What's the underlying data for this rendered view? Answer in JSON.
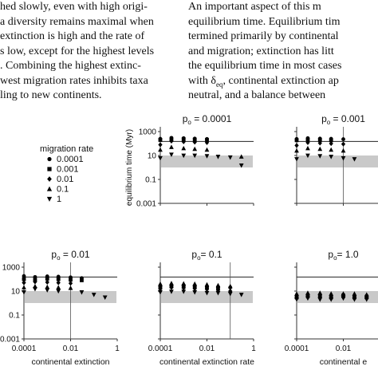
{
  "text": {
    "left_lines": [
      "hed slowly, even with high origi-",
      "a diversity remains maximal when",
      "extinction is high and the rate of",
      "s low, except for the highest levels",
      ". Combining the highest extinc-",
      "west migration rates inhibits taxa",
      "ling to new continents."
    ],
    "right_lines": [
      "  An important aspect of this m",
      "equilibrium time. Equilibrium tim",
      "termined primarily by continental",
      "and migration; extinction has litt",
      "the equilibrium time in most cases",
      "with δ_eq, continental extinction ap",
      "neutral, and a balance between"
    ],
    "right_line6_parts": {
      "pre": "with δ",
      "sub": "eq",
      "post": ", continental extinction ap"
    }
  },
  "legend": {
    "title": "migration rate",
    "entries": [
      {
        "label": "0.0001",
        "marker": "circle"
      },
      {
        "label": "0.001",
        "marker": "square"
      },
      {
        "label": "0.01",
        "marker": "diamond"
      },
      {
        "label": "0.1",
        "marker": "triangle-up"
      },
      {
        "label": "1",
        "marker": "triangle-down"
      }
    ]
  },
  "chart_data": [
    {
      "type": "scatter",
      "title_parts": {
        "pre": "p",
        "sub": "o",
        "post": " = 0.0001"
      },
      "ylabel": "equilibrium time (Myr)",
      "xlabel": "",
      "x_ticks": [],
      "y_ticks": [
        "1000",
        "10",
        "0.1",
        "0.001"
      ],
      "yscale": "log",
      "xscale": "log",
      "xlim": [
        0.0001,
        1
      ],
      "ylim": [
        0.001,
        1000
      ],
      "hline": 150,
      "band": [
        1,
        10
      ],
      "vline": null,
      "series": [
        {
          "marker": "circle",
          "x": [
            0.0001,
            0.0003,
            0.001,
            0.003,
            0.01
          ],
          "y": [
            250,
            300,
            280,
            260,
            240
          ]
        },
        {
          "marker": "square",
          "x": [
            0.0001,
            0.0003,
            0.001,
            0.003,
            0.01
          ],
          "y": [
            200,
            220,
            230,
            210,
            200
          ]
        },
        {
          "marker": "diamond",
          "x": [
            0.0001,
            0.0003,
            0.001,
            0.003,
            0.01
          ],
          "y": [
            80,
            160,
            140,
            130,
            120
          ]
        },
        {
          "marker": "triangle-up",
          "x": [
            0.0001,
            0.0003,
            0.001,
            0.003,
            0.01,
            0.3
          ],
          "y": [
            30,
            50,
            40,
            35,
            30,
            8
          ]
        },
        {
          "marker": "triangle-down",
          "x": [
            0.0001,
            0.0003,
            0.001,
            0.003,
            0.01,
            0.03,
            0.1,
            0.3
          ],
          "y": [
            6,
            12,
            10,
            10,
            9,
            8,
            7,
            1.5
          ]
        }
      ]
    },
    {
      "type": "scatter",
      "title_parts": {
        "pre": "p",
        "sub": "o",
        "post": " = 0.001"
      },
      "ylabel": "",
      "xlabel": "",
      "x_ticks": [],
      "y_ticks": [],
      "yscale": "log",
      "xscale": "log",
      "xlim": [
        0.0001,
        1
      ],
      "ylim": [
        0.001,
        1000
      ],
      "hline": 150,
      "band": [
        1,
        10
      ],
      "vline": 0.01,
      "series": [
        {
          "marker": "circle",
          "x": [
            0.0001,
            0.0003,
            0.001,
            0.003,
            0.01
          ],
          "y": [
            240,
            280,
            260,
            250,
            230
          ]
        },
        {
          "marker": "square",
          "x": [
            0.0001,
            0.0003,
            0.001,
            0.003
          ],
          "y": [
            190,
            210,
            200,
            190
          ]
        },
        {
          "marker": "diamond",
          "x": [
            0.0001,
            0.0003,
            0.001,
            0.003,
            0.01
          ],
          "y": [
            70,
            120,
            110,
            100,
            90
          ]
        },
        {
          "marker": "triangle-up",
          "x": [
            0.0001,
            0.0003,
            0.001,
            0.003,
            0.01
          ],
          "y": [
            25,
            40,
            35,
            30,
            25
          ]
        },
        {
          "marker": "triangle-down",
          "x": [
            0.0001,
            0.0003,
            0.001,
            0.003,
            0.01,
            0.03
          ],
          "y": [
            5,
            10,
            9,
            8,
            6,
            5
          ]
        }
      ]
    },
    {
      "type": "scatter",
      "title_parts": {
        "pre": "p",
        "sub": "o",
        "post": " = 0.01"
      },
      "ylabel": "",
      "xlabel": "continental extinction",
      "x_ticks": [
        "0.0001",
        "0.01",
        "1"
      ],
      "y_ticks": [
        "1000",
        "10",
        "0.1",
        "0.001"
      ],
      "yscale": "log",
      "xscale": "log",
      "xlim": [
        0.0001,
        1
      ],
      "ylim": [
        0.001,
        1000
      ],
      "hline": 150,
      "band": [
        1,
        10
      ],
      "vline": 0.01,
      "series": [
        {
          "marker": "circle",
          "x": [
            0.0001,
            0.0003,
            0.001,
            0.003,
            0.01,
            0.03
          ],
          "y": [
            180,
            150,
            170,
            160,
            140,
            120
          ]
        },
        {
          "marker": "square",
          "x": [
            0.0001,
            0.0003,
            0.001,
            0.003,
            0.01,
            0.03
          ],
          "y": [
            100,
            90,
            110,
            100,
            90,
            80
          ]
        },
        {
          "marker": "diamond",
          "x": [
            0.0001,
            0.0003,
            0.001,
            0.003,
            0.01
          ],
          "y": [
            50,
            60,
            55,
            50,
            45
          ]
        },
        {
          "marker": "triangle-up",
          "x": [
            0.0001,
            0.0003,
            0.001,
            0.003,
            0.01
          ],
          "y": [
            20,
            25,
            22,
            20,
            18
          ]
        },
        {
          "marker": "triangle-down",
          "x": [
            0.0001,
            0.0003,
            0.001,
            0.003,
            0.03,
            0.1,
            0.3
          ],
          "y": [
            8,
            15,
            12,
            10,
            8,
            5,
            3
          ]
        }
      ]
    },
    {
      "type": "scatter",
      "title_parts": {
        "pre": "p",
        "sub": "o",
        "post": "= 0.1"
      },
      "ylabel": "",
      "xlabel": "continental extinction rate",
      "x_ticks": [
        "0.0001",
        "0.01",
        "1"
      ],
      "y_ticks": [],
      "yscale": "log",
      "xscale": "log",
      "xlim": [
        0.0001,
        1
      ],
      "ylim": [
        0.001,
        1000
      ],
      "hline": 150,
      "band": [
        1,
        10
      ],
      "vline": 0.1,
      "series": [
        {
          "marker": "circle",
          "x": [
            0.0001,
            0.0003,
            0.001,
            0.003,
            0.01,
            0.03,
            0.1
          ],
          "y": [
            25,
            30,
            30,
            28,
            25,
            22,
            20
          ]
        },
        {
          "marker": "square",
          "x": [
            0.0001,
            0.0003,
            0.001,
            0.003,
            0.01,
            0.03
          ],
          "y": [
            20,
            25,
            24,
            22,
            20,
            18
          ]
        },
        {
          "marker": "diamond",
          "x": [
            0.0001,
            0.0003,
            0.001,
            0.003,
            0.01,
            0.03,
            0.1
          ],
          "y": [
            15,
            20,
            18,
            16,
            14,
            12,
            10
          ]
        },
        {
          "marker": "triangle-up",
          "x": [
            0.0001,
            0.0003,
            0.001,
            0.003,
            0.01,
            0.03,
            0.1
          ],
          "y": [
            40,
            45,
            42,
            40,
            35,
            30,
            25
          ]
        },
        {
          "marker": "triangle-down",
          "x": [
            0.0001,
            0.0003,
            0.001,
            0.003,
            0.01,
            0.03,
            0.1,
            0.3
          ],
          "y": [
            8,
            9,
            9,
            8,
            7,
            7,
            6,
            5
          ]
        }
      ]
    },
    {
      "type": "scatter",
      "title_parts": {
        "pre": "p",
        "sub": "o",
        "post": "= 1.0"
      },
      "ylabel": "",
      "xlabel": "continental e",
      "x_ticks": [
        "0.0001",
        "0.01"
      ],
      "y_ticks": [],
      "yscale": "log",
      "xscale": "log",
      "xlim": [
        0.0001,
        1
      ],
      "ylim": [
        0.001,
        1000
      ],
      "hline": 150,
      "band": [
        1,
        10
      ],
      "vline": null,
      "series": [
        {
          "marker": "circle",
          "x": [
            0.0001,
            0.0003,
            0.001,
            0.003,
            0.01,
            0.03,
            0.1
          ],
          "y": [
            4,
            5,
            5,
            4,
            5,
            4,
            4
          ]
        },
        {
          "marker": "square",
          "x": [
            0.0001,
            0.0003,
            0.001,
            0.003,
            0.01,
            0.03,
            0.1
          ],
          "y": [
            3,
            4,
            4,
            3,
            4,
            3,
            3
          ]
        },
        {
          "marker": "diamond",
          "x": [
            0.0001,
            0.0003,
            0.001,
            0.003,
            0.01,
            0.03,
            0.1
          ],
          "y": [
            2.5,
            3,
            3,
            2.5,
            3,
            2.5,
            2.5
          ]
        },
        {
          "marker": "triangle-up",
          "x": [
            0.0001,
            0.0003,
            0.001,
            0.003,
            0.01,
            0.03,
            0.1
          ],
          "y": [
            6,
            7,
            7,
            6,
            6,
            6,
            5
          ]
        },
        {
          "marker": "triangle-down",
          "x": [
            0.0001,
            0.0003,
            0.001,
            0.003,
            0.01,
            0.03,
            0.1
          ],
          "y": [
            2,
            2.5,
            2,
            2,
            2.5,
            2,
            2
          ]
        }
      ]
    }
  ]
}
